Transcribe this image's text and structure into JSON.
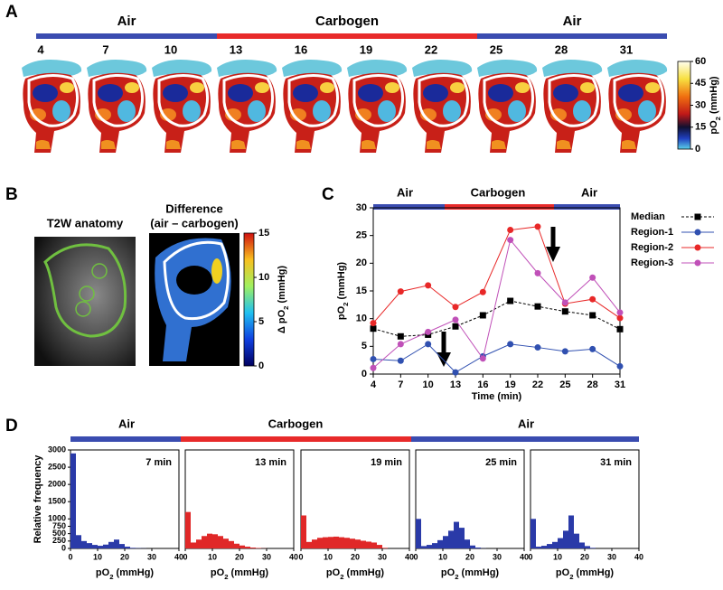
{
  "panel_labels": [
    "A",
    "B",
    "C",
    "D"
  ],
  "phases": [
    "Air",
    "Carbogen",
    "Air"
  ],
  "panel_a": {
    "times": [
      4,
      7,
      10,
      13,
      16,
      19,
      22,
      25,
      28,
      31
    ],
    "colorbar": {
      "label": [
        "pO",
        "2",
        " (mmHg)"
      ],
      "clim": [
        0,
        60
      ],
      "ticks": [
        0,
        15,
        30,
        45,
        60
      ]
    }
  },
  "panel_b": {
    "image_titles": [
      "T2W anatomy",
      "Difference",
      "(air – carbogen)"
    ],
    "colorbar": {
      "label": [
        "Δ pO",
        "2",
        " (mmHg)"
      ],
      "clim": [
        0,
        15
      ],
      "ticks": [
        0,
        5,
        10,
        15
      ]
    }
  },
  "chart_data": [
    {
      "type": "line",
      "x": [
        4,
        7,
        10,
        13,
        16,
        19,
        22,
        25,
        28,
        31
      ],
      "xlim": [
        4,
        31
      ],
      "xticks": [
        4,
        7,
        10,
        13,
        16,
        19,
        22,
        25,
        28,
        31
      ],
      "ylim": [
        0,
        30
      ],
      "yticks": [
        0,
        5,
        10,
        15,
        20,
        25,
        30
      ],
      "xlabel": "Time (min)",
      "ylabel": [
        "pO",
        "2",
        " (mmHg)"
      ],
      "legend": "right",
      "series": [
        {
          "name": "Median",
          "color": "#000000",
          "marker": "square",
          "dashed": true,
          "values": [
            8.2,
            6.8,
            7.1,
            8.6,
            10.6,
            13.2,
            12.2,
            11.3,
            10.6,
            8.1
          ]
        },
        {
          "name": "Region-1",
          "color": "#3050b0",
          "marker": "circle",
          "dashed": false,
          "values": [
            2.7,
            2.4,
            5.4,
            0.3,
            3.2,
            5.4,
            4.8,
            4.1,
            4.5,
            1.4
          ]
        },
        {
          "name": "Region-2",
          "color": "#e82828",
          "marker": "circle",
          "dashed": false,
          "values": [
            9.2,
            14.9,
            16.0,
            12.1,
            14.8,
            26.0,
            26.6,
            12.7,
            13.5,
            10.1
          ]
        },
        {
          "name": "Region-3",
          "color": "#c050b8",
          "marker": "circle",
          "dashed": false,
          "values": [
            1.1,
            5.4,
            7.6,
            9.8,
            2.8,
            24.2,
            18.2,
            12.9,
            17.4,
            11.1
          ]
        }
      ]
    },
    {
      "type": "histogram",
      "title": "7 min",
      "color": "#2a3aa8",
      "bins": [
        0,
        2,
        4,
        6,
        8,
        10,
        12,
        14,
        16,
        18,
        20,
        22,
        24,
        26,
        28,
        30,
        32,
        34,
        36,
        38,
        40
      ],
      "values": [
        2900,
        450,
        250,
        180,
        120,
        90,
        130,
        220,
        300,
        150,
        60,
        20,
        10,
        5,
        0,
        0,
        0,
        0,
        0,
        0
      ],
      "xlim": [
        0,
        40
      ],
      "xticks": [
        0,
        10,
        20,
        30,
        40
      ],
      "ylim": [
        0,
        3000
      ],
      "ybreak": 1000,
      "yticks": [
        0,
        250,
        500,
        750,
        1000,
        1500,
        2000,
        2500,
        3000
      ],
      "xlabel": [
        "pO",
        "2",
        " (mmHg)"
      ],
      "ylabel": "Relative frequency"
    },
    {
      "type": "histogram",
      "title": "13 min",
      "color": "#e02828",
      "bins": [
        0,
        2,
        4,
        6,
        8,
        10,
        12,
        14,
        16,
        18,
        20,
        22,
        24,
        26,
        28,
        30,
        32,
        34,
        36,
        38,
        40
      ],
      "values": [
        1200,
        200,
        300,
        420,
        500,
        480,
        420,
        330,
        250,
        160,
        100,
        60,
        30,
        15,
        5,
        0,
        0,
        0,
        0,
        0
      ],
      "xlim": [
        0,
        40
      ],
      "xticks": [
        0,
        10,
        20,
        30,
        40
      ],
      "ylim": [
        0,
        3000
      ],
      "ybreak": 1000,
      "xlabel": [
        "pO",
        "2",
        " (mmHg)"
      ]
    },
    {
      "type": "histogram",
      "title": "19 min",
      "color": "#e02828",
      "bins": [
        0,
        2,
        4,
        6,
        8,
        10,
        12,
        14,
        16,
        18,
        20,
        22,
        24,
        26,
        28,
        30,
        32,
        34,
        36,
        38,
        40
      ],
      "values": [
        1100,
        220,
        300,
        360,
        380,
        390,
        400,
        380,
        360,
        330,
        300,
        260,
        230,
        200,
        120,
        20,
        0,
        0,
        0,
        0
      ],
      "xlim": [
        0,
        40
      ],
      "xticks": [
        0,
        10,
        20,
        30,
        40
      ],
      "ylim": [
        0,
        3000
      ],
      "ybreak": 1000,
      "xlabel": [
        "pO",
        "2",
        " (mmHg)"
      ]
    },
    {
      "type": "histogram",
      "title": "25 min",
      "color": "#2a3aa8",
      "bins": [
        0,
        2,
        4,
        6,
        8,
        10,
        12,
        14,
        16,
        18,
        20,
        22,
        24,
        26,
        28,
        30,
        32,
        34,
        36,
        38,
        40
      ],
      "values": [
        1000,
        80,
        120,
        180,
        280,
        420,
        600,
        900,
        700,
        300,
        100,
        30,
        5,
        0,
        0,
        0,
        0,
        0,
        0,
        0
      ],
      "xlim": [
        0,
        40
      ],
      "xticks": [
        0,
        10,
        20,
        30,
        40
      ],
      "ylim": [
        0,
        3000
      ],
      "ybreak": 1000,
      "xlabel": [
        "pO",
        "2",
        " (mmHg)"
      ]
    },
    {
      "type": "histogram",
      "title": "31 min",
      "color": "#2a3aa8",
      "bins": [
        0,
        2,
        4,
        6,
        8,
        10,
        12,
        14,
        16,
        18,
        20,
        22,
        24,
        26,
        28,
        30,
        32,
        34,
        36,
        38,
        40
      ],
      "values": [
        1000,
        60,
        90,
        150,
        220,
        350,
        600,
        1100,
        500,
        200,
        80,
        20,
        0,
        0,
        0,
        0,
        0,
        0,
        0,
        0
      ],
      "xlim": [
        0,
        40
      ],
      "xticks": [
        0,
        10,
        20,
        30,
        40
      ],
      "ylim": [
        0,
        3000
      ],
      "ybreak": 1000,
      "xlabel": [
        "pO",
        "2",
        " (mmHg)"
      ]
    }
  ]
}
